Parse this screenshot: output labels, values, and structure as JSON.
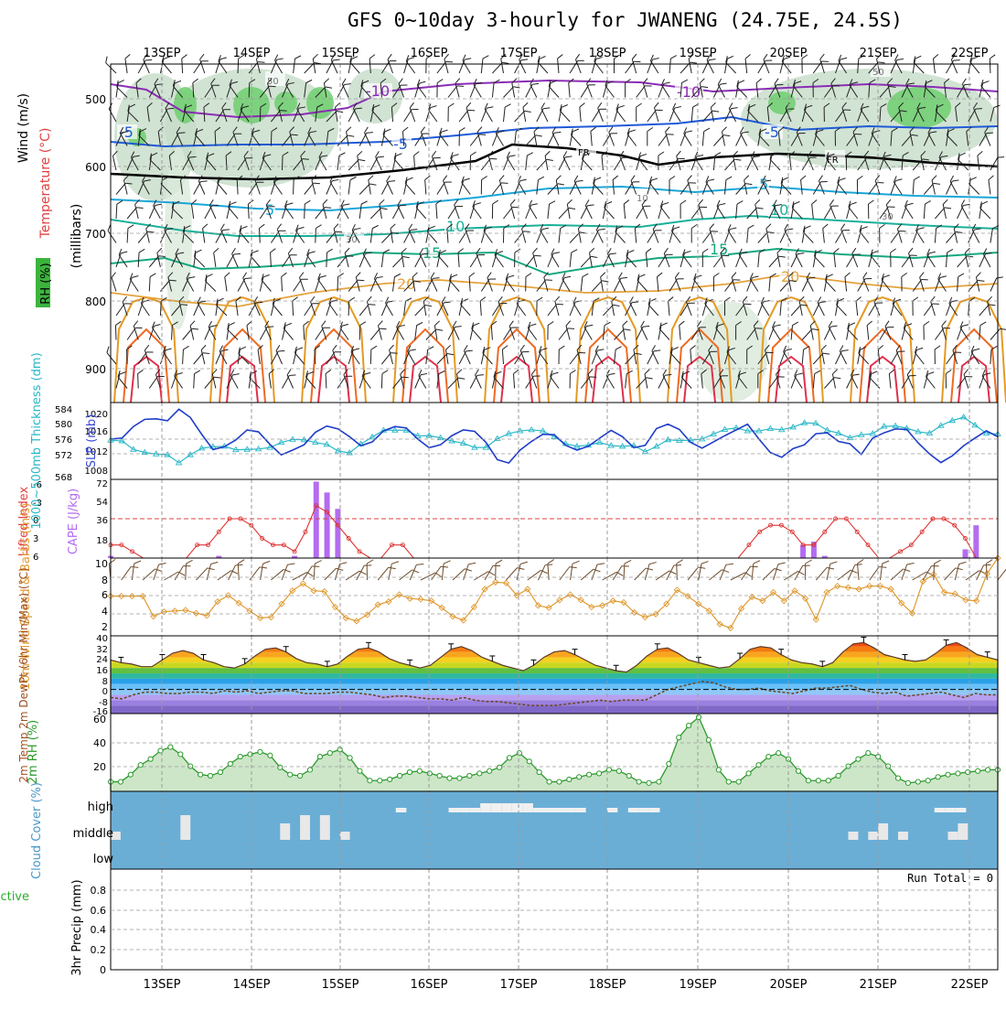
{
  "title": "GFS 0~10day 3-hourly for JWANENG (24.75E, 24.5S)",
  "dates": [
    "13SEP",
    "14SEP",
    "15SEP",
    "16SEP",
    "17SEP",
    "18SEP",
    "19SEP",
    "20SEP",
    "21SEP",
    "22SEP"
  ],
  "colors": {
    "grid": "#9a9a9a",
    "slp": "#1e3cc8",
    "thick": "#2ab8c8",
    "lifted": "#dd3333",
    "cape": "#b46cf0",
    "wind": "#e09a30",
    "barb": "#6b4a2a",
    "rh": "#2c9a2c",
    "cloud": "#6aaed6",
    "temp": "#5a3a2a"
  },
  "panels": {
    "upper": {
      "ylabel_wind": "Wind (m/s)",
      "ylabel_temp": "Temperature (°C)",
      "ylabel_rh": "RH (%)",
      "ylabel_pressure": "(millibars)",
      "pressure_ticks": [
        "500",
        "600",
        "700",
        "800",
        "900"
      ],
      "contour_labels": [
        "-10",
        "-10",
        "-5",
        "-5",
        "-5",
        "5",
        "5",
        "10",
        "10",
        "15",
        "15",
        "20",
        "20",
        "FR",
        "FR",
        "50",
        "50",
        "30",
        "30",
        "10"
      ]
    },
    "slp": {
      "ylabel_left": "1000~500mb Thickness (dm)",
      "ylabel_right": "SLP (mb)",
      "left_ticks": [
        "584",
        "580",
        "576",
        "572",
        "568"
      ],
      "right_ticks": [
        "1020",
        "1016",
        "1012",
        "1008"
      ]
    },
    "cape": {
      "ylabel_left": "Lifted Index",
      "ylabel_right": "CAPE (J/kg)",
      "left_ticks": [
        "-6",
        "-3",
        "0",
        "3",
        "6"
      ],
      "right_ticks": [
        "72",
        "54",
        "36",
        "18"
      ]
    },
    "wind10": {
      "ylabel": "10m Wind Speed & Barbs (m/s)",
      "ticks": [
        "10",
        "8",
        "6",
        "4",
        "2"
      ]
    },
    "temp": {
      "ylabel": "2m Temp 2m DewPt (6hr Min/Max) (°C)",
      "ticks": [
        "40",
        "32",
        "24",
        "16",
        "8",
        "0",
        "-8",
        "-16"
      ]
    },
    "rh": {
      "ylabel": "2m RH (%)",
      "ticks": [
        "60",
        "40",
        "20"
      ]
    },
    "cloud": {
      "ylabel": "Cloud Cover (%)",
      "levels": [
        "high",
        "middle",
        "low"
      ]
    },
    "precip": {
      "ylabel_left": "Total / Rain Convective",
      "ylabel": "3hr Precip (mm)",
      "ticks": [
        "0.8",
        "0.6",
        "0.4",
        "0.2",
        "0"
      ],
      "run_total": "Run Total = 0"
    }
  },
  "chart_data": [
    {
      "type": "line",
      "title": "Sea level pressure and 1000~500mb thickness",
      "x": "3-hourly steps from 12SEP 12Z",
      "series": [
        {
          "name": "SLP (mb)",
          "values": [
            1014.4,
            1014.6,
            1017,
            1018.5,
            1018.6,
            1018.2,
            1020.6,
            1018.9,
            1015.4,
            1012.2,
            1012.8,
            1014.2,
            1016.3,
            1015.9,
            1013.3,
            1011.1,
            1012.1,
            1013.2,
            1015.8,
            1017.1,
            1016.5,
            1014.9,
            1013,
            1013.8,
            1016.1,
            1017,
            1016.7,
            1014.4,
            1012.6,
            1013.2,
            1015.1,
            1016.3,
            1016,
            1013.7,
            1010.1,
            1009.4,
            1012.1,
            1013.9,
            1015.4,
            1015.3,
            1013.1,
            1012.1,
            1012.9,
            1014.6,
            1016.2,
            1014.9,
            1012.6,
            1013.1,
            1016.6,
            1017.5,
            1016.4,
            1013.7,
            1012.5,
            1013.8,
            1015.1,
            1016.3,
            1017.5,
            1014.4,
            1011.6,
            1010.6,
            1012.4,
            1013.2,
            1015.5,
            1015.7,
            1013.9,
            1013.4,
            1011.2,
            1014.6,
            1015.7,
            1016.5,
            1016.4,
            1013.6,
            1011.3,
            1009.5,
            1010.9,
            1013,
            1014.6,
            1016.1,
            1014.9
          ],
          "range": [
            1006,
            1022
          ]
        },
        {
          "name": "1000~500mb Thickness (dm)",
          "values": [
            576.2,
            576,
            573.8,
            573,
            572.6,
            572.4,
            570.3,
            572.4,
            574.1,
            574.5,
            574.6,
            573.7,
            573.8,
            573.9,
            574.3,
            575.6,
            576.4,
            576.3,
            575.6,
            575.1,
            573.4,
            572.9,
            575.2,
            577,
            578.8,
            578.8,
            578.8,
            577.3,
            577.4,
            576.8,
            576,
            575.4,
            574.3,
            574.3,
            576.6,
            577.9,
            578.6,
            578.9,
            578.6,
            577.1,
            575.3,
            574.6,
            574.9,
            575.6,
            574.8,
            574.6,
            574.8,
            573.2,
            574.6,
            576.3,
            576.1,
            576.2,
            576.5,
            577.8,
            579,
            579.4,
            578.6,
            578.6,
            579.2,
            578.9,
            579.6,
            580.7,
            580.6,
            578.8,
            578,
            576.8,
            577.6,
            577.9,
            579.8,
            579.9,
            579.3,
            578.4,
            578,
            580,
            581.3,
            582.2,
            580.1,
            578,
            577.8
          ],
          "range": [
            566,
            586
          ]
        }
      ]
    },
    {
      "type": "bar",
      "title": "CAPE and Lifted Index",
      "series": [
        {
          "name": "CAPE (J/kg)",
          "values": [
            2,
            0,
            0,
            0,
            0,
            0,
            0,
            0,
            0,
            0,
            2,
            0,
            0,
            0,
            0,
            0,
            0,
            2,
            0,
            70,
            60,
            45,
            0,
            0,
            0,
            0,
            0,
            0,
            0,
            0,
            0,
            0,
            0,
            0,
            0,
            0,
            0,
            0,
            0,
            0,
            0,
            0,
            0,
            0,
            0,
            0,
            0,
            0,
            0,
            0,
            0,
            0,
            0,
            0,
            0,
            0,
            0,
            0,
            0,
            0,
            0,
            0,
            0,
            0,
            12,
            15,
            2,
            0,
            0,
            0,
            0,
            0,
            0,
            0,
            0,
            0,
            0,
            0,
            0,
            8,
            30,
            0,
            0
          ]
        },
        {
          "name": "Lifted Index",
          "values": [
            4,
            4,
            5,
            6,
            6,
            6,
            6,
            6,
            4,
            4,
            2,
            0,
            0,
            1,
            3,
            4,
            4,
            5,
            2,
            -2,
            -1,
            1,
            3,
            5,
            6,
            6,
            4,
            4,
            6,
            6,
            6,
            6,
            6,
            6,
            6,
            6,
            6,
            6,
            6,
            6,
            6,
            6,
            6,
            6,
            6,
            6,
            6,
            6,
            6,
            6,
            6,
            6,
            6,
            6,
            6,
            6,
            6,
            6,
            6,
            4,
            2,
            1,
            1,
            2,
            4,
            4,
            2,
            0,
            0,
            2,
            4,
            6,
            6,
            5,
            4,
            2,
            0,
            0,
            1,
            3,
            6,
            6,
            6
          ],
          "range": [
            6,
            -6
          ]
        }
      ]
    },
    {
      "type": "line",
      "title": "10m Wind Speed",
      "ylim": [
        0,
        10
      ],
      "values": [
        5.1,
        5.1,
        5.1,
        5.1,
        2.5,
        3.1,
        3.2,
        3.3,
        2.9,
        2.6,
        4.4,
        5.2,
        4.2,
        3.2,
        2.3,
        2.4,
        4.1,
        5.8,
        6.7,
        5.8,
        5.7,
        3.7,
        2.3,
        1.9,
        2.7,
        4.0,
        4.4,
        5.3,
        4.8,
        4.7,
        4.5,
        3.6,
        2.5,
        2.0,
        3.7,
        6.0,
        6.9,
        6.8,
        5.2,
        6.0,
        3.9,
        3.6,
        4.6,
        5.3,
        4.6,
        3.7,
        3.9,
        4.5,
        4.3,
        3.0,
        2.4,
        2.8,
        4.1,
        5.9,
        5.1,
        4.1,
        3.2,
        1.5,
        1.0,
        3.5,
        5.0,
        4.5,
        5.6,
        4.5,
        5.8,
        4.8,
        2.1,
        5.6,
        6.4,
        6.2,
        6.0,
        6.4,
        6.4,
        6.0,
        4.2,
        2.9,
        7.0,
        7.9,
        5.6,
        5.4,
        4.6,
        4.5,
        8.0,
        10.0
      ]
    },
    {
      "type": "area",
      "title": "2m Temp and DewPt (°C)",
      "ylim": [
        -18,
        40
      ],
      "series": [
        {
          "name": "2m Temp",
          "values": [
            22,
            20,
            19,
            17,
            17,
            22,
            27,
            29,
            27,
            22,
            20,
            17,
            16,
            19,
            25,
            30,
            31,
            28,
            23,
            20,
            19,
            17,
            19,
            25,
            30,
            31,
            28,
            23,
            20,
            18,
            16,
            18,
            24,
            30,
            32,
            29,
            24,
            21,
            18,
            16,
            14,
            18,
            24,
            28,
            29,
            26,
            22,
            18,
            16,
            14,
            13,
            18,
            25,
            30,
            31,
            27,
            22,
            20,
            18,
            16,
            17,
            23,
            30,
            32,
            31,
            26,
            22,
            20,
            19,
            17,
            20,
            28,
            34,
            35,
            31,
            26,
            24,
            22,
            21,
            22,
            27,
            33,
            35,
            31,
            26,
            24,
            22
          ]
        },
        {
          "name": "2m DewPt",
          "values": [
            -6,
            -7,
            -4,
            -2,
            -2,
            -3,
            -3,
            -2,
            -2,
            -3,
            -1,
            -2,
            -1,
            -3,
            -2,
            -1,
            -1,
            -3,
            -3,
            -3,
            -2,
            -2,
            -3,
            -4,
            -6,
            -5,
            -5,
            -6,
            -7,
            -7,
            -8,
            -6,
            -8,
            -9,
            -9,
            -10,
            -11,
            -12,
            -12,
            -12,
            -11,
            -10,
            -9,
            -8,
            -9,
            -8,
            -8,
            -8,
            -4,
            0,
            2,
            4,
            6,
            5,
            2,
            0,
            0,
            1,
            -1,
            -2,
            -3,
            -1,
            1,
            1,
            2,
            3,
            0,
            -2,
            -3,
            -2,
            -5,
            -4,
            -3,
            -2,
            -4,
            -6,
            -3,
            -4,
            -4
          ]
        }
      ]
    },
    {
      "type": "area",
      "title": "2m RH (%)",
      "ylim": [
        0,
        65
      ],
      "values": [
        8,
        8,
        14,
        22,
        27,
        34,
        37,
        31,
        21,
        14,
        13,
        16,
        23,
        29,
        31,
        33,
        30,
        20,
        14,
        13,
        18,
        29,
        32,
        35,
        28,
        17,
        9,
        9,
        10,
        13,
        16,
        17,
        15,
        13,
        11,
        11,
        13,
        15,
        17,
        20,
        28,
        32,
        25,
        16,
        8,
        8,
        10,
        12,
        14,
        15,
        18,
        17,
        13,
        8,
        7,
        8,
        23,
        45,
        55,
        62,
        43,
        18,
        8,
        8,
        15,
        22,
        29,
        32,
        27,
        17,
        9,
        9,
        9,
        13,
        21,
        27,
        32,
        29,
        21,
        11,
        7,
        8,
        9,
        12,
        14,
        15,
        16,
        17,
        18,
        18
      ]
    },
    {
      "type": "bar",
      "title": "Cloud Cover (%)",
      "series": [
        {
          "name": "high",
          "values": [
            0,
            0,
            0,
            0,
            0,
            0,
            0,
            0,
            0,
            0,
            0,
            0,
            0,
            0,
            0,
            0,
            0,
            0,
            0,
            0,
            0,
            0,
            0,
            0,
            0,
            0,
            0,
            1,
            0,
            0,
            0,
            0,
            1,
            1,
            1,
            2,
            2,
            2,
            2,
            2,
            1,
            1,
            1,
            1,
            1,
            0,
            0,
            1,
            0,
            1,
            1,
            1,
            0,
            0,
            0,
            0,
            0,
            0,
            0,
            0,
            0,
            0,
            0,
            0,
            0,
            0,
            0,
            0,
            0,
            0,
            0,
            0,
            0,
            0,
            0,
            0,
            0,
            0,
            1,
            1,
            1,
            0,
            0,
            0
          ]
        },
        {
          "name": "middle",
          "values": [
            1,
            0,
            0,
            0,
            0,
            0,
            0,
            3,
            0,
            0,
            0,
            0,
            0,
            0,
            0,
            0,
            0,
            2,
            0,
            3,
            0,
            3,
            0,
            1,
            0,
            0,
            0,
            0,
            0,
            0,
            0,
            0,
            0,
            0,
            0,
            0,
            0,
            0,
            0,
            0,
            0,
            0,
            0,
            0,
            0,
            0,
            0,
            0,
            0,
            0,
            0,
            0,
            0,
            0,
            0,
            0,
            0,
            0,
            0,
            0,
            0,
            0,
            0,
            0,
            0,
            0,
            0,
            0,
            0,
            0,
            0,
            0,
            0,
            0,
            1,
            0,
            1,
            2,
            0,
            1,
            0,
            0,
            0,
            0,
            1,
            2,
            0,
            0,
            0
          ]
        }
      ]
    },
    {
      "type": "bar",
      "title": "3hr Precip (mm)",
      "ylim": [
        0,
        1
      ],
      "values": []
    }
  ]
}
